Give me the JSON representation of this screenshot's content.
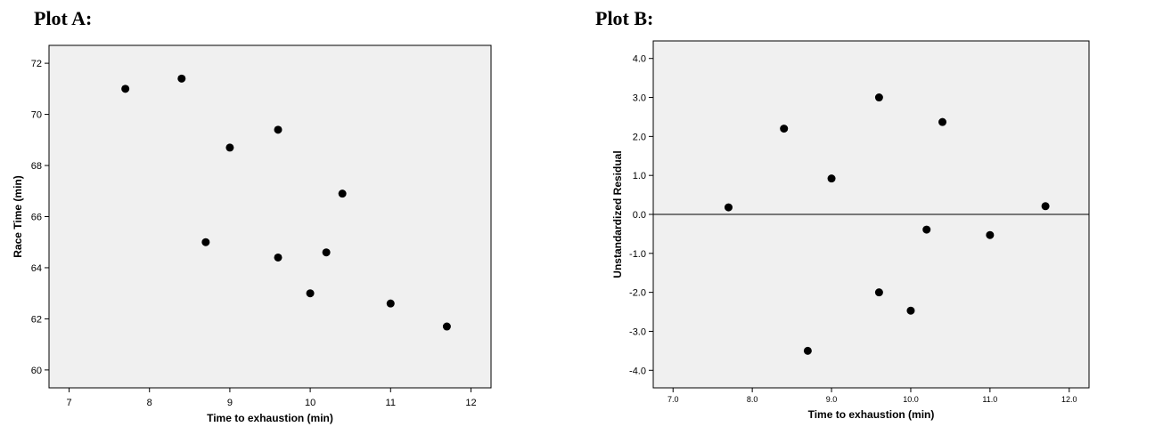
{
  "chart_data": [
    {
      "id": "A",
      "type": "scatter",
      "title": "Plot A:",
      "xlabel": "Time to exhaustion (min)",
      "ylabel": "Race Time (min)",
      "xlim": [
        6.75,
        12.25
      ],
      "ylim": [
        59.3,
        72.7
      ],
      "xticks": [
        7,
        8,
        9,
        10,
        11,
        12
      ],
      "xtick_labels": [
        "7",
        "8",
        "9",
        "10",
        "11",
        "12"
      ],
      "yticks": [
        60,
        62,
        64,
        66,
        68,
        70,
        72
      ],
      "ytick_labels": [
        "60",
        "62",
        "64",
        "66",
        "68",
        "70",
        "72"
      ],
      "reference_line": null,
      "x": [
        7.7,
        8.4,
        8.7,
        9.0,
        9.6,
        9.6,
        10.0,
        10.2,
        10.4,
        11.0,
        11.7
      ],
      "y": [
        71.0,
        71.4,
        65.0,
        68.7,
        69.4,
        64.4,
        63.0,
        64.6,
        66.9,
        62.6,
        61.7
      ],
      "plot_bg": "#f0f0f0",
      "marker_color": "#000000"
    },
    {
      "id": "B",
      "type": "scatter",
      "title": "Plot B:",
      "xlabel": "Time to exhaustion (min)",
      "ylabel": "Unstandardized Residual",
      "xlim": [
        6.75,
        12.25
      ],
      "ylim": [
        -4.45,
        4.45
      ],
      "xticks": [
        7,
        8,
        9,
        10,
        11,
        12
      ],
      "xtick_labels": [
        "7.0",
        "8.0",
        "9.0",
        "10.0",
        "11.0",
        "12.0"
      ],
      "yticks": [
        -4,
        -3,
        -2,
        -1,
        0,
        1,
        2,
        3,
        4
      ],
      "ytick_labels": [
        "-4.0",
        "-3.0",
        "-2.0",
        "-1.0",
        "0.0",
        "1.0",
        "2.0",
        "3.0",
        "4.0"
      ],
      "reference_line": 0,
      "x": [
        7.7,
        8.4,
        8.7,
        9.0,
        9.6,
        9.6,
        10.0,
        10.2,
        10.4,
        11.0,
        11.7
      ],
      "y": [
        0.18,
        2.2,
        -3.5,
        0.92,
        3.0,
        -2.0,
        -2.47,
        -0.39,
        2.37,
        -0.53,
        0.21
      ],
      "plot_bg": "#f0f0f0",
      "marker_color": "#000000"
    }
  ]
}
